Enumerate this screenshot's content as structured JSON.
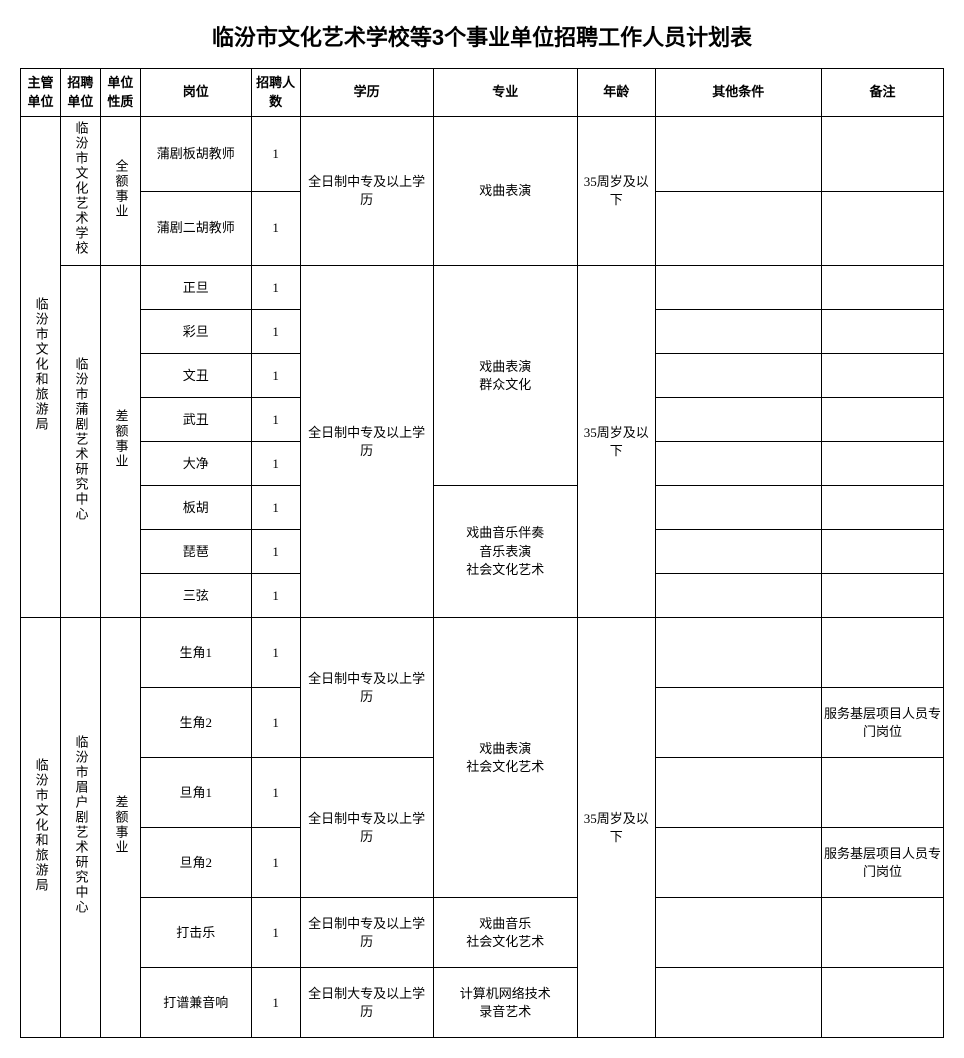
{
  "title": "临汾市文化艺术学校等3个事业单位招聘工作人员计划表",
  "headers": {
    "dept": "主管单位",
    "unit": "招聘单位",
    "nature": "单位性质",
    "position": "岗位",
    "count": "招聘人数",
    "edu": "学历",
    "major": "专业",
    "age": "年龄",
    "other": "其他条件",
    "remark": "备注"
  },
  "dept1": "临汾市文化和旅游局",
  "dept2": "临汾市文化和旅游局",
  "unit1": "临汾市文化艺术学校",
  "unit2": "临汾市蒲剧艺术研究中心",
  "unit3": "临汾市眉户剧艺术研究中心",
  "nature1": "全额事业",
  "nature2": "差额事业",
  "nature3": "差额事业",
  "edu_zhongzhuan": "全日制中专及以上学历",
  "edu_dazhuan": "全日制大专及以上学历",
  "major1": "戏曲表演",
  "major2": "戏曲表演\n群众文化",
  "major3": "戏曲音乐伴奏\n音乐表演\n社会文化艺术",
  "major4": "戏曲表演\n社会文化艺术",
  "major5": "戏曲音乐\n社会文化艺术",
  "major6": "计算机网络技术\n录音艺术",
  "age35": "35周岁及以下",
  "remark_service": "服务基层项目人员专门岗位",
  "p1": "蒲剧板胡教师",
  "c1": "1",
  "p2": "蒲剧二胡教师",
  "c2": "1",
  "p3": "正旦",
  "c3": "1",
  "p4": "彩旦",
  "c4": "1",
  "p5": "文丑",
  "c5": "1",
  "p6": "武丑",
  "c6": "1",
  "p7": "大净",
  "c7": "1",
  "p8": "板胡",
  "c8": "1",
  "p9": "琵琶",
  "c9": "1",
  "p10": "三弦",
  "c10": "1",
  "p11": "生角1",
  "c11": "1",
  "p12": "生角2",
  "c12": "1",
  "p13": "旦角1",
  "c13": "1",
  "p14": "旦角2",
  "c14": "1",
  "p15": "打击乐",
  "c15": "1",
  "p16": "打谱兼音响",
  "c16": "1",
  "colors": {
    "border": "#000000",
    "background": "#ffffff",
    "text": "#000000"
  },
  "font": {
    "title_size": 22,
    "cell_size": 13,
    "title_family": "SimHei",
    "body_family": "SimSun"
  }
}
